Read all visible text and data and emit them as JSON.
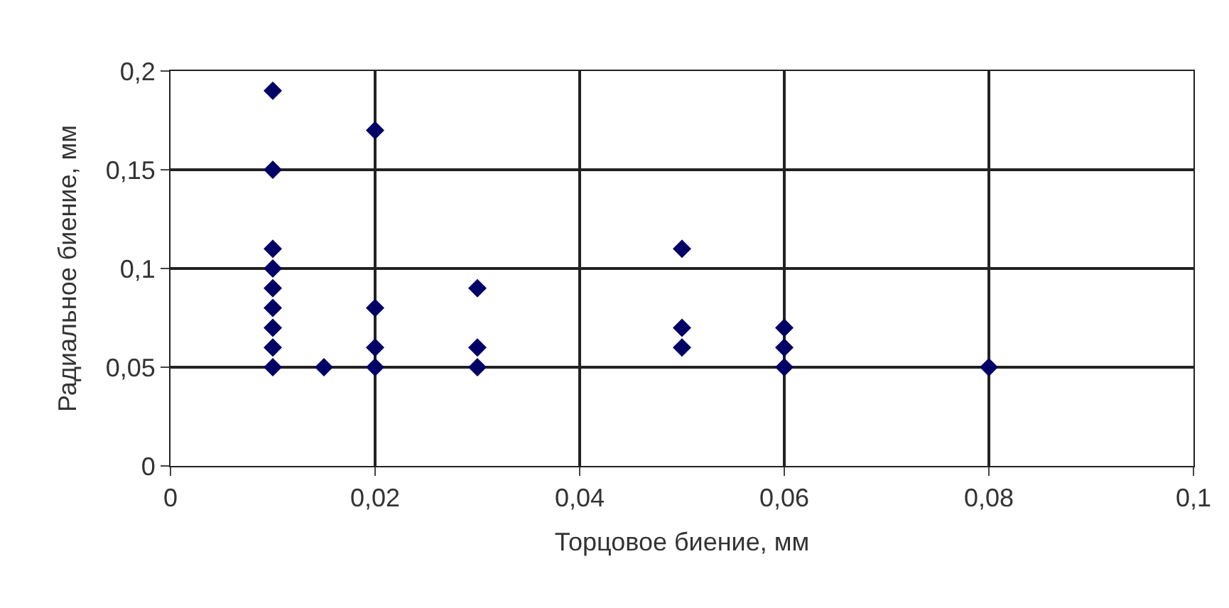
{
  "chart_data": {
    "type": "scatter",
    "xlabel": "Торцовое биение, мм",
    "ylabel": "Радиальное биение, мм",
    "x": [
      0.01,
      0.01,
      0.01,
      0.01,
      0.01,
      0.01,
      0.01,
      0.01,
      0.01,
      0.015,
      0.02,
      0.02,
      0.02,
      0.02,
      0.03,
      0.03,
      0.03,
      0.05,
      0.05,
      0.05,
      0.06,
      0.06,
      0.06,
      0.08
    ],
    "values": [
      0.19,
      0.15,
      0.11,
      0.1,
      0.09,
      0.08,
      0.07,
      0.06,
      0.05,
      0.05,
      0.17,
      0.08,
      0.06,
      0.05,
      0.09,
      0.06,
      0.05,
      0.11,
      0.07,
      0.06,
      0.07,
      0.06,
      0.05,
      0.05
    ],
    "color": "#000066",
    "marker": "diamond",
    "xlim": [
      0,
      0.1
    ],
    "xticks": [
      0,
      {
        "value": 0.02,
        "label": "0,02"
      },
      {
        "value": 0.04,
        "label": "0,04"
      },
      {
        "value": 0.06,
        "label": "0,06"
      },
      {
        "value": 0.08,
        "label": "0,08"
      },
      {
        "value": 0.1,
        "label": "0,1"
      }
    ],
    "ylim": [
      0,
      0.2
    ],
    "yticks": [
      0,
      {
        "value": 0.05,
        "label": "0,05"
      },
      {
        "value": 0.1,
        "label": "0,1"
      },
      {
        "value": 0.15,
        "label": "0,15"
      },
      {
        "value": 0.2,
        "label": "0,2"
      }
    ],
    "grid": true,
    "legend": false
  }
}
